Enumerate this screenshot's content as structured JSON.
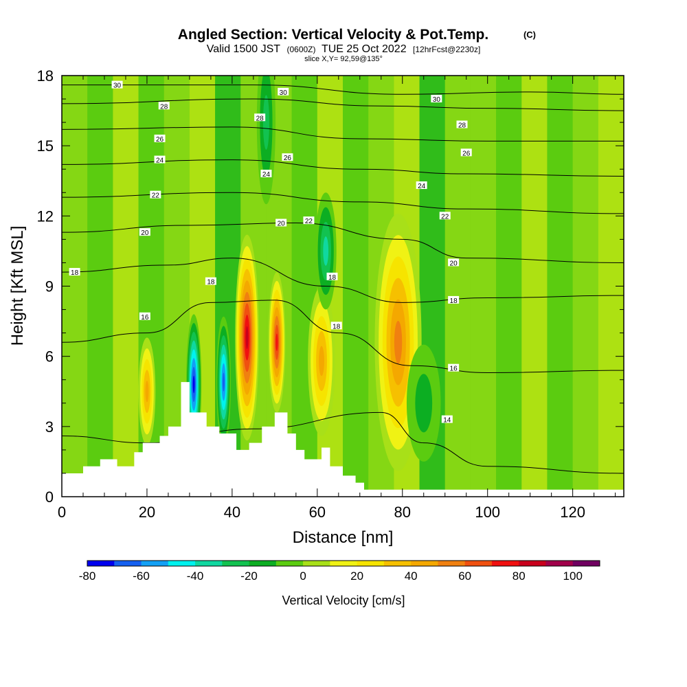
{
  "header": {
    "title": "Angled Section: Vertical Velocity & Pot.Temp.",
    "title_suffix": "(C)",
    "valid_prefix": "Valid 1500 JST",
    "valid_zulu": "(0600Z)",
    "valid_date": "TUE 25 Oct 2022",
    "forecast": "[12hrFcst@2230z]",
    "slice": "slice X,Y= 92,59@135°"
  },
  "chart_data": {
    "type": "heatmap",
    "xlabel": "Distance [nm]",
    "ylabel": "Height [Kft MSL]",
    "xlim": [
      0,
      132
    ],
    "ylim": [
      0,
      18
    ],
    "x_ticks": [
      "0",
      "20",
      "40",
      "60",
      "80",
      "100",
      "120"
    ],
    "y_ticks": [
      "0",
      "3",
      "6",
      "9",
      "12",
      "15",
      "18"
    ],
    "colorbar": {
      "title": "Vertical Velocity [cm/s]",
      "range": [
        -80,
        110
      ],
      "step": 10,
      "tick_labels": [
        "-80",
        "-60",
        "-40",
        "-20",
        "0",
        "20",
        "40",
        "60",
        "80",
        "100"
      ],
      "colors": [
        "#0000ee",
        "#1560f0",
        "#13a0f5",
        "#00f2ee",
        "#10d8a0",
        "#12c250",
        "#0cae22",
        "#5bcc10",
        "#a8e018",
        "#f0f214",
        "#f6e400",
        "#f6c000",
        "#f4a800",
        "#f08010",
        "#f05010",
        "#f01010",
        "#c8001c",
        "#a0004a",
        "#700060"
      ]
    },
    "terrain_top_kft": [
      {
        "x": 0,
        "h": 1.0
      },
      {
        "x": 5,
        "h": 1.3
      },
      {
        "x": 9,
        "h": 1.6
      },
      {
        "x": 13,
        "h": 1.3
      },
      {
        "x": 17,
        "h": 1.9
      },
      {
        "x": 19,
        "h": 2.3
      },
      {
        "x": 23,
        "h": 2.6
      },
      {
        "x": 25,
        "h": 3.0
      },
      {
        "x": 28,
        "h": 4.9
      },
      {
        "x": 30,
        "h": 3.6
      },
      {
        "x": 34,
        "h": 3.0
      },
      {
        "x": 37,
        "h": 2.7
      },
      {
        "x": 41,
        "h": 2.0
      },
      {
        "x": 44,
        "h": 2.3
      },
      {
        "x": 47,
        "h": 3.0
      },
      {
        "x": 50,
        "h": 3.6
      },
      {
        "x": 53,
        "h": 2.7
      },
      {
        "x": 55,
        "h": 2.0
      },
      {
        "x": 57,
        "h": 1.6
      },
      {
        "x": 61,
        "h": 2.1
      },
      {
        "x": 63,
        "h": 1.3
      },
      {
        "x": 66,
        "h": 0.9
      },
      {
        "x": 69,
        "h": 0.6
      },
      {
        "x": 71,
        "h": 0.3
      },
      {
        "x": 132,
        "h": 0.3
      }
    ],
    "pot_temp_contours": [
      {
        "label": "14",
        "points": [
          [
            0,
            2.6
          ],
          [
            20,
            2.3
          ],
          [
            45,
            2.9
          ],
          [
            75,
            3.6
          ],
          [
            85,
            2.3
          ],
          [
            100,
            1.3
          ],
          [
            132,
            1.0
          ]
        ]
      },
      {
        "label": "16",
        "points": [
          [
            0,
            6.6
          ],
          [
            20,
            7.0
          ],
          [
            35,
            8.3
          ],
          [
            50,
            8.4
          ],
          [
            65,
            7.0
          ],
          [
            82,
            5.6
          ],
          [
            100,
            5.3
          ],
          [
            132,
            5.4
          ]
        ]
      },
      {
        "label": "18",
        "points": [
          [
            0,
            9.6
          ],
          [
            25,
            9.9
          ],
          [
            40,
            10.2
          ],
          [
            62,
            9.0
          ],
          [
            80,
            8.3
          ],
          [
            100,
            8.5
          ],
          [
            132,
            8.6
          ]
        ]
      },
      {
        "label": "20",
        "points": [
          [
            0,
            11.3
          ],
          [
            30,
            11.6
          ],
          [
            55,
            11.7
          ],
          [
            80,
            11.0
          ],
          [
            95,
            10.2
          ],
          [
            132,
            10.0
          ]
        ]
      },
      {
        "label": "22",
        "points": [
          [
            0,
            12.8
          ],
          [
            40,
            13.0
          ],
          [
            70,
            12.6
          ],
          [
            95,
            12.3
          ],
          [
            132,
            12.1
          ]
        ]
      },
      {
        "label": "24",
        "points": [
          [
            0,
            14.2
          ],
          [
            40,
            14.4
          ],
          [
            70,
            14.0
          ],
          [
            95,
            13.8
          ],
          [
            132,
            13.7
          ]
        ]
      },
      {
        "label": "26",
        "points": [
          [
            0,
            15.7
          ],
          [
            40,
            15.8
          ],
          [
            70,
            15.3
          ],
          [
            100,
            15.2
          ],
          [
            132,
            15.2
          ]
        ]
      },
      {
        "label": "28",
        "points": [
          [
            0,
            16.8
          ],
          [
            45,
            17.0
          ],
          [
            75,
            16.7
          ],
          [
            100,
            16.6
          ],
          [
            132,
            16.5
          ]
        ]
      },
      {
        "label": "30",
        "points": [
          [
            0,
            17.6
          ],
          [
            45,
            17.6
          ],
          [
            80,
            17.2
          ],
          [
            110,
            17.3
          ],
          [
            132,
            17.2
          ]
        ]
      }
    ],
    "contour_labels": [
      {
        "text": "30",
        "x": 13,
        "y": 17.6
      },
      {
        "text": "28",
        "x": 24,
        "y": 16.7
      },
      {
        "text": "26",
        "x": 23,
        "y": 15.3
      },
      {
        "text": "24",
        "x": 23,
        "y": 14.4
      },
      {
        "text": "22",
        "x": 22,
        "y": 12.9
      },
      {
        "text": "20",
        "x": 19.5,
        "y": 11.3
      },
      {
        "text": "18",
        "x": 3,
        "y": 9.6
      },
      {
        "text": "16",
        "x": 19.5,
        "y": 7.7
      },
      {
        "text": "18",
        "x": 35,
        "y": 9.2
      },
      {
        "text": "30",
        "x": 52,
        "y": 17.3
      },
      {
        "text": "28",
        "x": 46.5,
        "y": 16.2
      },
      {
        "text": "26",
        "x": 53,
        "y": 14.5
      },
      {
        "text": "24",
        "x": 48,
        "y": 13.8
      },
      {
        "text": "20",
        "x": 51.5,
        "y": 11.7
      },
      {
        "text": "22",
        "x": 58,
        "y": 11.8
      },
      {
        "text": "18",
        "x": 63.5,
        "y": 9.4
      },
      {
        "text": "18",
        "x": 64.5,
        "y": 7.3
      },
      {
        "text": "30",
        "x": 88,
        "y": 17.0
      },
      {
        "text": "28",
        "x": 94,
        "y": 15.9
      },
      {
        "text": "26",
        "x": 95,
        "y": 14.7
      },
      {
        "text": "24",
        "x": 84.5,
        "y": 13.3
      },
      {
        "text": "22",
        "x": 90,
        "y": 12.0
      },
      {
        "text": "20",
        "x": 92,
        "y": 10.0
      },
      {
        "text": "18",
        "x": 92,
        "y": 8.4
      },
      {
        "text": "16",
        "x": 92,
        "y": 5.5
      },
      {
        "text": "14",
        "x": 90.5,
        "y": 3.3
      }
    ],
    "velocity_cells": [
      {
        "x": 20,
        "y": 4.5,
        "rx": 2.0,
        "ry": 2.3,
        "v": 50
      },
      {
        "x": 43.5,
        "y": 6.8,
        "rx": 2.8,
        "ry": 4.4,
        "v": 85
      },
      {
        "x": 50.5,
        "y": 6.6,
        "rx": 2.0,
        "ry": 3.0,
        "v": 80
      },
      {
        "x": 61,
        "y": 5.8,
        "rx": 3.2,
        "ry": 3.2,
        "v": 45
      },
      {
        "x": 79,
        "y": 6.6,
        "rx": 5.5,
        "ry": 5.5,
        "v": 55
      },
      {
        "x": 31,
        "y": 4.8,
        "rx": 1.8,
        "ry": 3.0,
        "v": -75
      },
      {
        "x": 38,
        "y": 4.9,
        "rx": 1.7,
        "ry": 2.8,
        "v": -65
      },
      {
        "x": 48,
        "y": 16.0,
        "rx": 2.2,
        "ry": 3.5,
        "v": -25
      },
      {
        "x": 62,
        "y": 10.5,
        "rx": 2.5,
        "ry": 2.5,
        "v": -35
      },
      {
        "x": 85,
        "y": 4.0,
        "rx": 4.0,
        "ry": 2.5,
        "v": -20
      }
    ]
  }
}
